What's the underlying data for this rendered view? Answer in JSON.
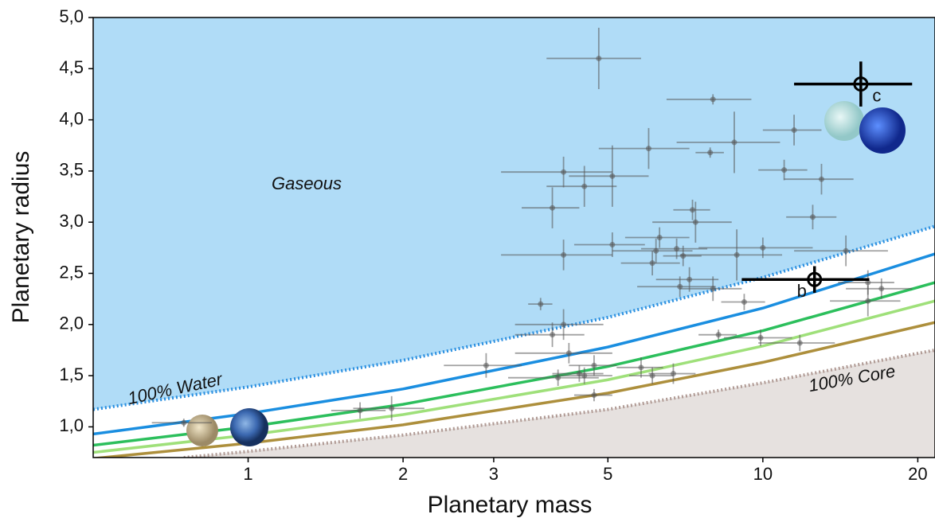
{
  "chart_data": {
    "type": "scatter",
    "xlabel": "Planetary mass",
    "ylabel": "Planetary radius",
    "xscale": "log",
    "xlim": [
      0.5,
      21.6
    ],
    "ylim": [
      0.7,
      5.0
    ],
    "xticks": [
      1,
      2,
      3,
      5,
      10,
      20
    ],
    "yticks": [
      {
        "value": 1.0,
        "label": "1,0"
      },
      {
        "value": 1.5,
        "label": "1,5"
      },
      {
        "value": 2.0,
        "label": "2,0"
      },
      {
        "value": 2.5,
        "label": "2,5"
      },
      {
        "value": 3.0,
        "label": "3,0"
      },
      {
        "value": 3.5,
        "label": "3,5"
      },
      {
        "value": 4.0,
        "label": "4,0"
      },
      {
        "value": 4.5,
        "label": "4,5"
      },
      {
        "value": 5.0,
        "label": "5,0"
      }
    ],
    "gaseous_color": "#b0dcf7",
    "core_color": "#e6e1df",
    "curves": [
      {
        "color": "#2a8fe0",
        "style": "dotted",
        "x": [
          0.5,
          1,
          2,
          5,
          10,
          21.6
        ],
        "values": [
          1.17,
          1.39,
          1.65,
          2.07,
          2.46,
          2.96
        ]
      },
      {
        "color": "#1a8ee0",
        "style": "solid",
        "x": [
          0.5,
          1,
          2,
          5,
          10,
          21.6
        ],
        "values": [
          0.93,
          1.13,
          1.37,
          1.78,
          2.16,
          2.69
        ]
      },
      {
        "color": "#2cbf5c",
        "style": "solid",
        "x": [
          0.5,
          1,
          2,
          5,
          10,
          21.6
        ],
        "values": [
          0.82,
          1.0,
          1.22,
          1.59,
          1.94,
          2.41
        ]
      },
      {
        "color": "#9fe07a",
        "style": "solid",
        "x": [
          0.5,
          1,
          2,
          5,
          10,
          21.6
        ],
        "values": [
          0.75,
          0.92,
          1.12,
          1.46,
          1.79,
          2.23
        ]
      },
      {
        "color": "#ad8f3c",
        "style": "solid",
        "x": [
          0.5,
          1,
          2,
          5,
          10,
          21.6
        ],
        "values": [
          0.69,
          0.84,
          1.02,
          1.33,
          1.63,
          2.02
        ]
      },
      {
        "color": "#b09a94",
        "style": "dotted",
        "x": [
          0.75,
          1,
          2,
          5,
          10,
          21.6
        ],
        "values": [
          0.7,
          0.76,
          0.92,
          1.17,
          1.43,
          1.75
        ]
      }
    ],
    "points": {
      "color": "#555555",
      "x": [
        4.8,
        8.0,
        8.8,
        7.9,
        6.0,
        4.1,
        5.1,
        4.5,
        3.9,
        11.5,
        11.0,
        13.0,
        12.5,
        7.3,
        7.4,
        5.1,
        6.3,
        6.2,
        6.8,
        7.0,
        4.1,
        6.1,
        8.9,
        10.0,
        14.5,
        7.2,
        6.9,
        8.0,
        3.7,
        9.2,
        16.0,
        17.0,
        16.0,
        4.1,
        3.9,
        4.2,
        8.2,
        9.9,
        2.9,
        4.4,
        4.5,
        4.0,
        4.7,
        5.8,
        6.7,
        6.1,
        4.7,
        11.8,
        1.9,
        1.65,
        0.75
      ],
      "values": [
        4.6,
        4.2,
        3.78,
        3.68,
        3.72,
        3.49,
        3.45,
        3.35,
        3.14,
        3.9,
        3.51,
        3.42,
        3.05,
        3.12,
        3.0,
        2.78,
        2.85,
        2.72,
        2.74,
        2.67,
        2.68,
        2.6,
        2.68,
        2.75,
        2.72,
        2.44,
        2.37,
        2.35,
        2.2,
        2.22,
        2.41,
        2.35,
        2.23,
        2.0,
        1.9,
        1.72,
        1.9,
        1.87,
        1.6,
        1.52,
        1.5,
        1.48,
        1.6,
        1.58,
        1.52,
        1.5,
        1.31,
        1.82,
        1.18,
        1.16,
        1.04
      ],
      "xerr": [
        1.0,
        1.5,
        2.0,
        0.5,
        1.2,
        1.0,
        0.9,
        0.7,
        0.5,
        1.5,
        1.2,
        2.0,
        1.4,
        0.6,
        1.3,
        0.8,
        0.9,
        1.1,
        1.0,
        0.6,
        1.0,
        0.8,
        2.0,
        2.5,
        3.0,
        1.0,
        1.2,
        1.1,
        0.2,
        0.9,
        2.0,
        2.5,
        2.5,
        0.8,
        0.6,
        0.9,
        0.7,
        1.5,
        0.5,
        0.5,
        0.6,
        0.8,
        0.5,
        0.6,
        0.7,
        0.6,
        0.4,
        2.0,
        0.3,
        0.2,
        0.1
      ],
      "yerr": [
        0.3,
        0.05,
        0.3,
        0.05,
        0.2,
        0.15,
        0.3,
        0.2,
        0.2,
        0.15,
        0.1,
        0.15,
        0.12,
        0.1,
        0.2,
        0.12,
        0.1,
        0.12,
        0.1,
        0.1,
        0.15,
        0.12,
        0.25,
        0.1,
        0.15,
        0.12,
        0.1,
        0.12,
        0.06,
        0.08,
        0.12,
        0.1,
        0.15,
        0.15,
        0.12,
        0.1,
        0.05,
        0.08,
        0.12,
        0.08,
        0.08,
        0.08,
        0.1,
        0.1,
        0.1,
        0.08,
        0.06,
        0.08,
        0.12,
        0.08,
        0.04
      ]
    },
    "highlighted": {
      "color": "#000000",
      "labels": [
        "b",
        "c"
      ],
      "x": [
        12.6,
        15.5
      ],
      "values": [
        2.44,
        4.35
      ],
      "xerr": [
        3.5,
        4.0
      ],
      "yerr": [
        0.13,
        0.22
      ]
    },
    "annotations": [
      "Gaseous",
      "100% Water",
      "100% Core"
    ]
  }
}
